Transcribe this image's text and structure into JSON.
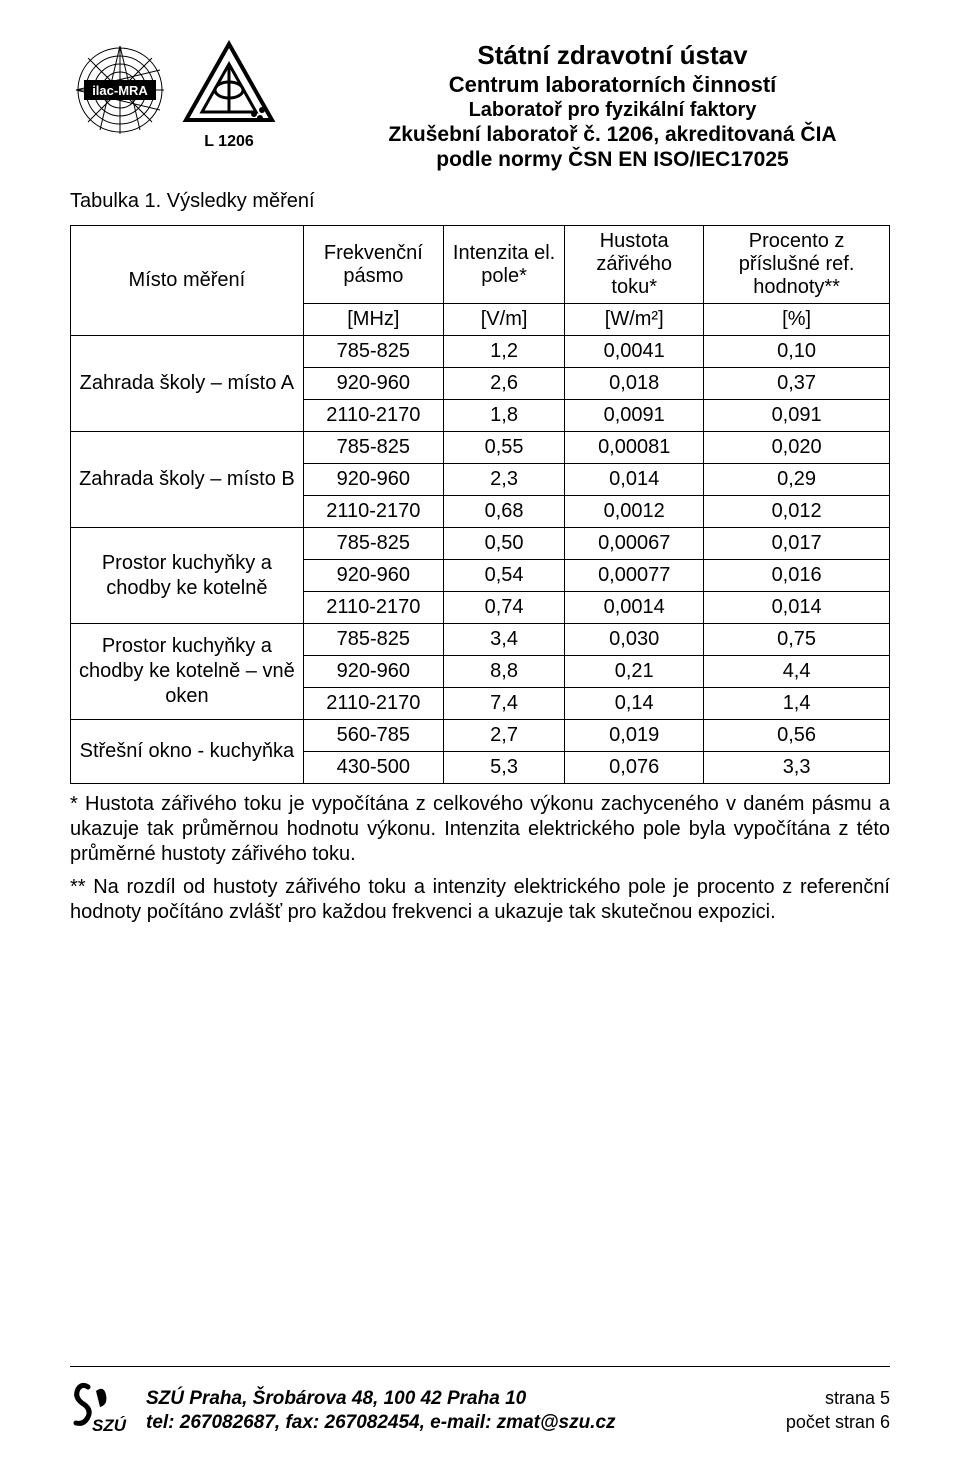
{
  "header": {
    "line1": "Státní zdravotní ústav",
    "line2": "Centrum laboratorních činností",
    "line3": "Laboratoř pro fyzikální faktory",
    "line4": "Zkušební laboratoř č. 1206, akreditovaná ČIA",
    "line5": "podle normy ČSN EN ISO/IEC17025",
    "l1206": "L 1206",
    "ilac_label": "ilac-MRA"
  },
  "caption": "Tabulka 1. Výsledky měření",
  "table": {
    "columns": {
      "c0": "Místo měření",
      "c1": "Frekvenční pásmo",
      "c2": "Intenzita el. pole*",
      "c3": "Hustota zářivého toku*",
      "c4": "Procento z příslušné ref. hodnoty**"
    },
    "units": {
      "u1": "[MHz]",
      "u2": "[V/m]",
      "u3": "[W/m²]",
      "u4": "[%]"
    },
    "locations": [
      {
        "name": "Zahrada školy – místo A",
        "span": 3
      },
      {
        "name": "Zahrada školy – místo B",
        "span": 3
      },
      {
        "name": "Prostor kuchyňky a chodby ke kotelně",
        "span": 3
      },
      {
        "name": "Prostor kuchyňky a chodby ke kotelně – vně oken",
        "span": 3
      },
      {
        "name": "Střešní okno - kuchyňka",
        "span": 2
      }
    ],
    "rows": [
      [
        "785-825",
        "1,2",
        "0,0041",
        "0,10"
      ],
      [
        "920-960",
        "2,6",
        "0,018",
        "0,37"
      ],
      [
        "2110-2170",
        "1,8",
        "0,0091",
        "0,091"
      ],
      [
        "785-825",
        "0,55",
        "0,00081",
        "0,020"
      ],
      [
        "920-960",
        "2,3",
        "0,014",
        "0,29"
      ],
      [
        "2110-2170",
        "0,68",
        "0,0012",
        "0,012"
      ],
      [
        "785-825",
        "0,50",
        "0,00067",
        "0,017"
      ],
      [
        "920-960",
        "0,54",
        "0,00077",
        "0,016"
      ],
      [
        "2110-2170",
        "0,74",
        "0,0014",
        "0,014"
      ],
      [
        "785-825",
        "3,4",
        "0,030",
        "0,75"
      ],
      [
        "920-960",
        "8,8",
        "0,21",
        "4,4"
      ],
      [
        "2110-2170",
        "7,4",
        "0,14",
        "1,4"
      ],
      [
        "560-785",
        "2,7",
        "0,019",
        "0,56"
      ],
      [
        "430-500",
        "5,3",
        "0,076",
        "3,3"
      ]
    ]
  },
  "notes": {
    "n1": "* Hustota zářivého toku je vypočítána z celkového výkonu zachyceného v daném pásmu a ukazuje tak průměrnou hodnotu výkonu. Intenzita elektrického pole byla vypočítána z této průměrné hustoty zářivého toku.",
    "n2": "** Na rozdíl od hustoty zářivého toku a intenzity elektrického pole je procento z referenční hodnoty počítáno zvlášť pro každou frekvenci a ukazuje tak skutečnou expozici."
  },
  "footer": {
    "addr": "SZÚ Praha, Šrobárova 48, 100 42 Praha 10",
    "contact": "tel: 267082687, fax: 267082454, e-mail: zmat@szu.cz",
    "page_label": "strana",
    "page_num": "5",
    "total_label": "počet stran",
    "total_num": "6",
    "szu_label": "SZÚ"
  }
}
